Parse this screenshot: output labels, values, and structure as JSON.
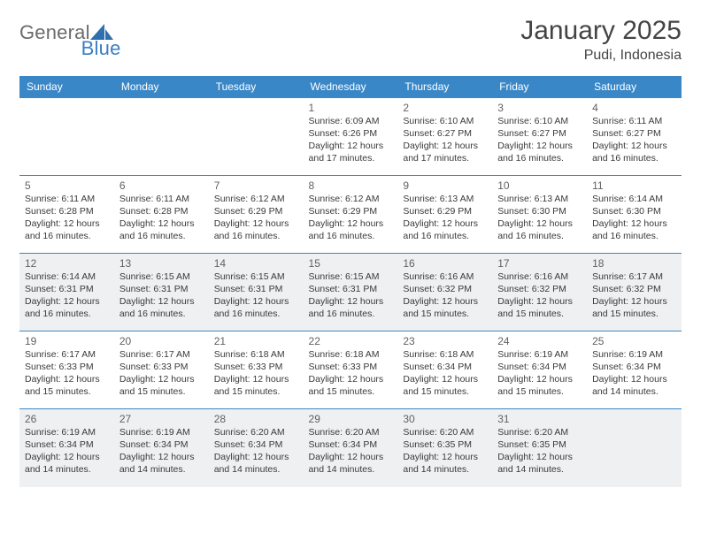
{
  "brand": {
    "word1": "General",
    "word2": "Blue",
    "word1_color": "#6b6b6b",
    "word2_color": "#3a7fc4",
    "shape_color": "#2f6fae"
  },
  "title": "January 2025",
  "location": "Pudi, Indonesia",
  "colors": {
    "header_bg": "#3a87c7",
    "header_text": "#ffffff",
    "row_border": "#3a87c7",
    "alt_bg": "#eef0f1",
    "daynum_color": "#616161",
    "detail_color": "#3a3a3a",
    "page_bg": "#ffffff"
  },
  "typography": {
    "month_title_size": 30,
    "location_size": 16,
    "dayhead_size": 12,
    "daynum_size": 12,
    "detail_size": 10.5
  },
  "day_headers": [
    "Sunday",
    "Monday",
    "Tuesday",
    "Wednesday",
    "Thursday",
    "Friday",
    "Saturday"
  ],
  "weeks": [
    {
      "alt": false,
      "cells": [
        {
          "empty": true
        },
        {
          "empty": true
        },
        {
          "empty": true
        },
        {
          "day": "1",
          "sunrise": "Sunrise: 6:09 AM",
          "sunset": "Sunset: 6:26 PM",
          "daylight1": "Daylight: 12 hours",
          "daylight2": "and 17 minutes."
        },
        {
          "day": "2",
          "sunrise": "Sunrise: 6:10 AM",
          "sunset": "Sunset: 6:27 PM",
          "daylight1": "Daylight: 12 hours",
          "daylight2": "and 17 minutes."
        },
        {
          "day": "3",
          "sunrise": "Sunrise: 6:10 AM",
          "sunset": "Sunset: 6:27 PM",
          "daylight1": "Daylight: 12 hours",
          "daylight2": "and 16 minutes."
        },
        {
          "day": "4",
          "sunrise": "Sunrise: 6:11 AM",
          "sunset": "Sunset: 6:27 PM",
          "daylight1": "Daylight: 12 hours",
          "daylight2": "and 16 minutes."
        }
      ]
    },
    {
      "alt": false,
      "cells": [
        {
          "day": "5",
          "sunrise": "Sunrise: 6:11 AM",
          "sunset": "Sunset: 6:28 PM",
          "daylight1": "Daylight: 12 hours",
          "daylight2": "and 16 minutes."
        },
        {
          "day": "6",
          "sunrise": "Sunrise: 6:11 AM",
          "sunset": "Sunset: 6:28 PM",
          "daylight1": "Daylight: 12 hours",
          "daylight2": "and 16 minutes."
        },
        {
          "day": "7",
          "sunrise": "Sunrise: 6:12 AM",
          "sunset": "Sunset: 6:29 PM",
          "daylight1": "Daylight: 12 hours",
          "daylight2": "and 16 minutes."
        },
        {
          "day": "8",
          "sunrise": "Sunrise: 6:12 AM",
          "sunset": "Sunset: 6:29 PM",
          "daylight1": "Daylight: 12 hours",
          "daylight2": "and 16 minutes."
        },
        {
          "day": "9",
          "sunrise": "Sunrise: 6:13 AM",
          "sunset": "Sunset: 6:29 PM",
          "daylight1": "Daylight: 12 hours",
          "daylight2": "and 16 minutes."
        },
        {
          "day": "10",
          "sunrise": "Sunrise: 6:13 AM",
          "sunset": "Sunset: 6:30 PM",
          "daylight1": "Daylight: 12 hours",
          "daylight2": "and 16 minutes."
        },
        {
          "day": "11",
          "sunrise": "Sunrise: 6:14 AM",
          "sunset": "Sunset: 6:30 PM",
          "daylight1": "Daylight: 12 hours",
          "daylight2": "and 16 minutes."
        }
      ]
    },
    {
      "alt": true,
      "cells": [
        {
          "day": "12",
          "sunrise": "Sunrise: 6:14 AM",
          "sunset": "Sunset: 6:31 PM",
          "daylight1": "Daylight: 12 hours",
          "daylight2": "and 16 minutes."
        },
        {
          "day": "13",
          "sunrise": "Sunrise: 6:15 AM",
          "sunset": "Sunset: 6:31 PM",
          "daylight1": "Daylight: 12 hours",
          "daylight2": "and 16 minutes."
        },
        {
          "day": "14",
          "sunrise": "Sunrise: 6:15 AM",
          "sunset": "Sunset: 6:31 PM",
          "daylight1": "Daylight: 12 hours",
          "daylight2": "and 16 minutes."
        },
        {
          "day": "15",
          "sunrise": "Sunrise: 6:15 AM",
          "sunset": "Sunset: 6:31 PM",
          "daylight1": "Daylight: 12 hours",
          "daylight2": "and 16 minutes."
        },
        {
          "day": "16",
          "sunrise": "Sunrise: 6:16 AM",
          "sunset": "Sunset: 6:32 PM",
          "daylight1": "Daylight: 12 hours",
          "daylight2": "and 15 minutes."
        },
        {
          "day": "17",
          "sunrise": "Sunrise: 6:16 AM",
          "sunset": "Sunset: 6:32 PM",
          "daylight1": "Daylight: 12 hours",
          "daylight2": "and 15 minutes."
        },
        {
          "day": "18",
          "sunrise": "Sunrise: 6:17 AM",
          "sunset": "Sunset: 6:32 PM",
          "daylight1": "Daylight: 12 hours",
          "daylight2": "and 15 minutes."
        }
      ]
    },
    {
      "alt": false,
      "cells": [
        {
          "day": "19",
          "sunrise": "Sunrise: 6:17 AM",
          "sunset": "Sunset: 6:33 PM",
          "daylight1": "Daylight: 12 hours",
          "daylight2": "and 15 minutes."
        },
        {
          "day": "20",
          "sunrise": "Sunrise: 6:17 AM",
          "sunset": "Sunset: 6:33 PM",
          "daylight1": "Daylight: 12 hours",
          "daylight2": "and 15 minutes."
        },
        {
          "day": "21",
          "sunrise": "Sunrise: 6:18 AM",
          "sunset": "Sunset: 6:33 PM",
          "daylight1": "Daylight: 12 hours",
          "daylight2": "and 15 minutes."
        },
        {
          "day": "22",
          "sunrise": "Sunrise: 6:18 AM",
          "sunset": "Sunset: 6:33 PM",
          "daylight1": "Daylight: 12 hours",
          "daylight2": "and 15 minutes."
        },
        {
          "day": "23",
          "sunrise": "Sunrise: 6:18 AM",
          "sunset": "Sunset: 6:34 PM",
          "daylight1": "Daylight: 12 hours",
          "daylight2": "and 15 minutes."
        },
        {
          "day": "24",
          "sunrise": "Sunrise: 6:19 AM",
          "sunset": "Sunset: 6:34 PM",
          "daylight1": "Daylight: 12 hours",
          "daylight2": "and 15 minutes."
        },
        {
          "day": "25",
          "sunrise": "Sunrise: 6:19 AM",
          "sunset": "Sunset: 6:34 PM",
          "daylight1": "Daylight: 12 hours",
          "daylight2": "and 14 minutes."
        }
      ]
    },
    {
      "alt": true,
      "cells": [
        {
          "day": "26",
          "sunrise": "Sunrise: 6:19 AM",
          "sunset": "Sunset: 6:34 PM",
          "daylight1": "Daylight: 12 hours",
          "daylight2": "and 14 minutes."
        },
        {
          "day": "27",
          "sunrise": "Sunrise: 6:19 AM",
          "sunset": "Sunset: 6:34 PM",
          "daylight1": "Daylight: 12 hours",
          "daylight2": "and 14 minutes."
        },
        {
          "day": "28",
          "sunrise": "Sunrise: 6:20 AM",
          "sunset": "Sunset: 6:34 PM",
          "daylight1": "Daylight: 12 hours",
          "daylight2": "and 14 minutes."
        },
        {
          "day": "29",
          "sunrise": "Sunrise: 6:20 AM",
          "sunset": "Sunset: 6:34 PM",
          "daylight1": "Daylight: 12 hours",
          "daylight2": "and 14 minutes."
        },
        {
          "day": "30",
          "sunrise": "Sunrise: 6:20 AM",
          "sunset": "Sunset: 6:35 PM",
          "daylight1": "Daylight: 12 hours",
          "daylight2": "and 14 minutes."
        },
        {
          "day": "31",
          "sunrise": "Sunrise: 6:20 AM",
          "sunset": "Sunset: 6:35 PM",
          "daylight1": "Daylight: 12 hours",
          "daylight2": "and 14 minutes."
        },
        {
          "empty": true
        }
      ]
    }
  ]
}
